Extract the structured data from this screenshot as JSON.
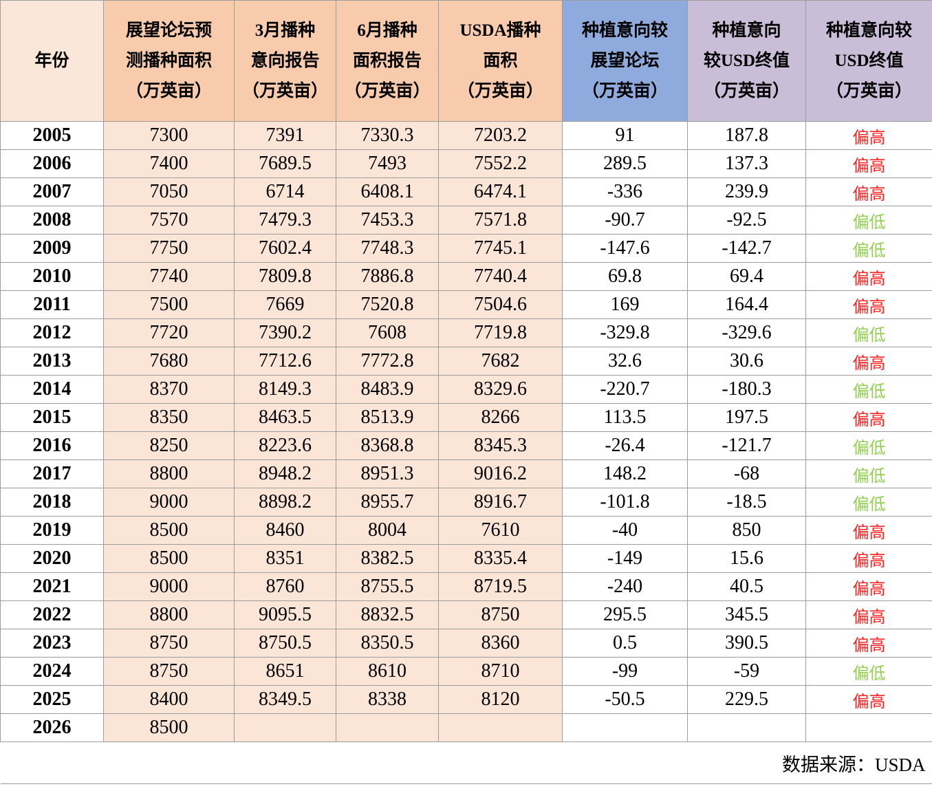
{
  "chart_data": {
    "type": "table",
    "columns": [
      {
        "id": "year",
        "label": "年份"
      },
      {
        "id": "forum",
        "label": "展望论坛预\n测播种面积\n（万英亩）"
      },
      {
        "id": "march",
        "label": "3月播种\n意向报告\n（万英亩）"
      },
      {
        "id": "june",
        "label": "6月播种\n面积报告\n（万英亩）"
      },
      {
        "id": "usda",
        "label": "USDA播种\n面积\n（万英亩）"
      },
      {
        "id": "vs_forum",
        "label": "种植意向较\n展望论坛\n（万英亩）"
      },
      {
        "id": "vs_usda",
        "label": "种植意向\n较USD终值\n（万英亩）"
      },
      {
        "id": "tendency",
        "label": "种植意向较\nUSD终值\n（万英亩）"
      }
    ],
    "rows": [
      {
        "year": 2005,
        "forum": 7300,
        "march": 7391,
        "june": 7330.3,
        "usda": 7203.2,
        "vs_forum": 91,
        "vs_usda": 187.8,
        "tendency": "偏高",
        "tendency_status": "high"
      },
      {
        "year": 2006,
        "forum": 7400,
        "march": 7689.5,
        "june": 7493,
        "usda": 7552.2,
        "vs_forum": 289.5,
        "vs_usda": 137.3,
        "tendency": "偏高",
        "tendency_status": "high"
      },
      {
        "year": 2007,
        "forum": 7050,
        "march": 6714,
        "june": 6408.1,
        "usda": 6474.1,
        "vs_forum": -336,
        "vs_usda": 239.9,
        "tendency": "偏高",
        "tendency_status": "high"
      },
      {
        "year": 2008,
        "forum": 7570,
        "march": 7479.3,
        "june": 7453.3,
        "usda": 7571.8,
        "vs_forum": -90.7,
        "vs_usda": -92.5,
        "tendency": "偏低",
        "tendency_status": "low"
      },
      {
        "year": 2009,
        "forum": 7750,
        "march": 7602.4,
        "june": 7748.3,
        "usda": 7745.1,
        "vs_forum": -147.6,
        "vs_usda": -142.7,
        "tendency": "偏低",
        "tendency_status": "low"
      },
      {
        "year": 2010,
        "forum": 7740,
        "march": 7809.8,
        "june": 7886.8,
        "usda": 7740.4,
        "vs_forum": 69.8,
        "vs_usda": 69.4,
        "tendency": "偏高",
        "tendency_status": "high"
      },
      {
        "year": 2011,
        "forum": 7500,
        "march": 7669,
        "june": 7520.8,
        "usda": 7504.6,
        "vs_forum": 169,
        "vs_usda": 164.4,
        "tendency": "偏高",
        "tendency_status": "high"
      },
      {
        "year": 2012,
        "forum": 7720,
        "march": 7390.2,
        "june": 7608,
        "usda": 7719.8,
        "vs_forum": -329.8,
        "vs_usda": -329.6,
        "tendency": "偏低",
        "tendency_status": "low"
      },
      {
        "year": 2013,
        "forum": 7680,
        "march": 7712.6,
        "june": 7772.8,
        "usda": 7682,
        "vs_forum": 32.6,
        "vs_usda": 30.6,
        "tendency": "偏高",
        "tendency_status": "high"
      },
      {
        "year": 2014,
        "forum": 8370,
        "march": 8149.3,
        "june": 8483.9,
        "usda": 8329.6,
        "vs_forum": -220.7,
        "vs_usda": -180.3,
        "tendency": "偏低",
        "tendency_status": "low"
      },
      {
        "year": 2015,
        "forum": 8350,
        "march": 8463.5,
        "june": 8513.9,
        "usda": 8266,
        "vs_forum": 113.5,
        "vs_usda": 197.5,
        "tendency": "偏高",
        "tendency_status": "high"
      },
      {
        "year": 2016,
        "forum": 8250,
        "march": 8223.6,
        "june": 8368.8,
        "usda": 8345.3,
        "vs_forum": -26.4,
        "vs_usda": -121.7,
        "tendency": "偏低",
        "tendency_status": "low"
      },
      {
        "year": 2017,
        "forum": 8800,
        "march": 8948.2,
        "june": 8951.3,
        "usda": 9016.2,
        "vs_forum": 148.2,
        "vs_usda": -68,
        "tendency": "偏低",
        "tendency_status": "low"
      },
      {
        "year": 2018,
        "forum": 9000,
        "march": 8898.2,
        "june": 8955.7,
        "usda": 8916.7,
        "vs_forum": -101.8,
        "vs_usda": -18.5,
        "tendency": "偏低",
        "tendency_status": "low"
      },
      {
        "year": 2019,
        "forum": 8500,
        "march": 8460,
        "june": 8004,
        "usda": 7610,
        "vs_forum": -40,
        "vs_usda": 850,
        "tendency": "偏高",
        "tendency_status": "high"
      },
      {
        "year": 2020,
        "forum": 8500,
        "march": 8351,
        "june": 8382.5,
        "usda": 8335.4,
        "vs_forum": -149,
        "vs_usda": 15.6,
        "tendency": "偏高",
        "tendency_status": "high"
      },
      {
        "year": 2021,
        "forum": 9000,
        "march": 8760,
        "june": 8755.5,
        "usda": 8719.5,
        "vs_forum": -240,
        "vs_usda": 40.5,
        "tendency": "偏高",
        "tendency_status": "high"
      },
      {
        "year": 2022,
        "forum": 8800,
        "march": 9095.5,
        "june": 8832.5,
        "usda": 8750,
        "vs_forum": 295.5,
        "vs_usda": 345.5,
        "tendency": "偏高",
        "tendency_status": "high"
      },
      {
        "year": 2023,
        "forum": 8750,
        "march": 8750.5,
        "june": 8350.5,
        "usda": 8360,
        "vs_forum": 0.5,
        "vs_usda": 390.5,
        "tendency": "偏高",
        "tendency_status": "high"
      },
      {
        "year": 2024,
        "forum": 8750,
        "march": 8651,
        "june": 8610,
        "usda": 8710,
        "vs_forum": -99,
        "vs_usda": -59,
        "tendency": "偏低",
        "tendency_status": "low"
      },
      {
        "year": 2025,
        "forum": 8400,
        "march": 8349.5,
        "june": 8338,
        "usda": 8120,
        "vs_forum": -50.5,
        "vs_usda": 229.5,
        "tendency": "偏高",
        "tendency_status": "high"
      },
      {
        "year": 2026,
        "forum": 8500,
        "march": "",
        "june": "",
        "usda": "",
        "vs_forum": "",
        "vs_usda": "",
        "tendency": "",
        "tendency_status": ""
      }
    ],
    "source_note": "数据来源：USDA",
    "layout": {
      "grid": true,
      "legend": "none"
    }
  },
  "colors": {
    "header_peach": "#F8CBAD",
    "header_light_peach": "#FBE7D9",
    "header_blue": "#8FAADC",
    "header_purple": "#C9BDD8",
    "data_peach": "#FBE5D6",
    "high_red": "#FF2222",
    "low_green": "#92D050",
    "border_gray": "#9C9C9C"
  }
}
